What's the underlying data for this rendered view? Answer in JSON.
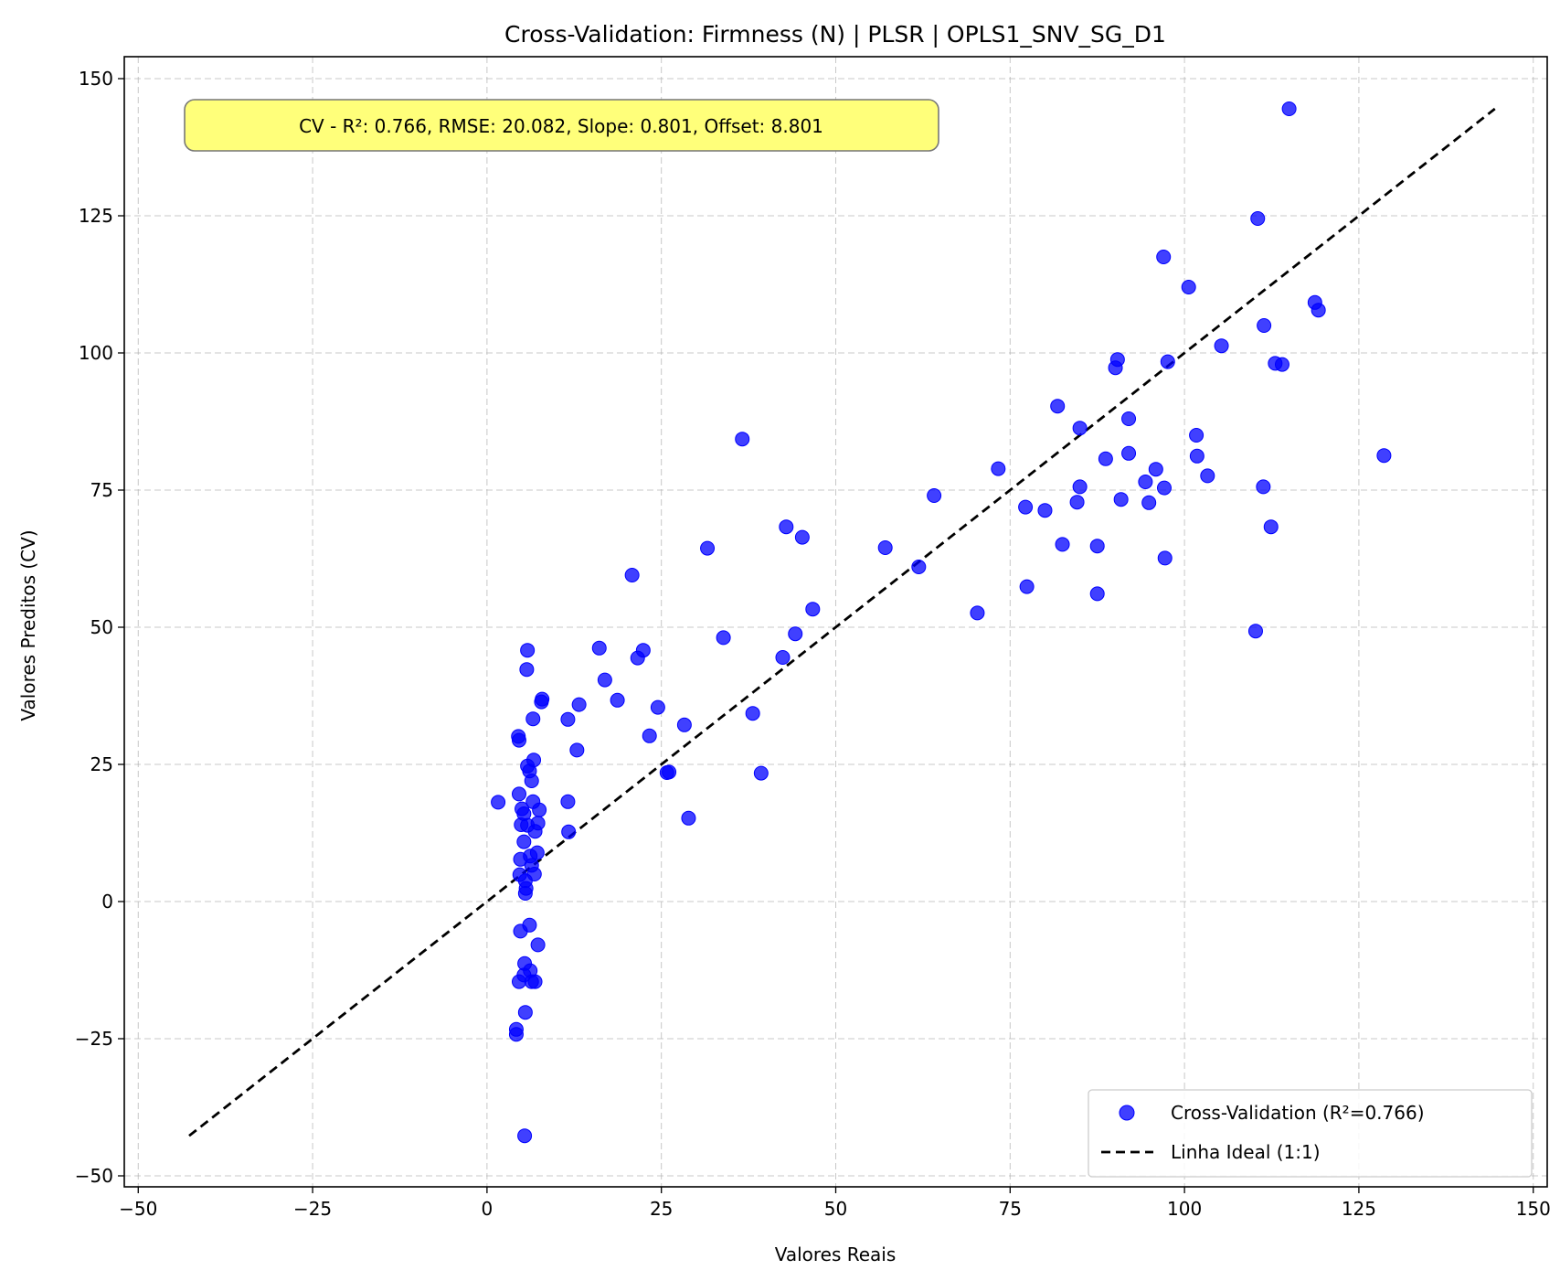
{
  "chart_data": {
    "type": "scatter",
    "title": "Cross-Validation: Firmness (N) | PLSR | OPLS1_SNV_SG_D1",
    "xlabel": "Valores Reais",
    "ylabel": "Valores Preditos (CV)",
    "xlim": [
      -52,
      152
    ],
    "ylim": [
      -52,
      154
    ],
    "xticks": [
      -50,
      -25,
      0,
      25,
      50,
      75,
      100,
      125,
      150
    ],
    "yticks": [
      -50,
      -25,
      0,
      25,
      50,
      75,
      100,
      125,
      150
    ],
    "xtick_labels": [
      "−50",
      "−25",
      "0",
      "25",
      "50",
      "75",
      "100",
      "125",
      "150"
    ],
    "ytick_labels": [
      "−50",
      "−25",
      "0",
      "25",
      "50",
      "75",
      "100",
      "125",
      "150"
    ],
    "grid": true,
    "annotation": "CV - R²: 0.766, RMSE: 20.082, Slope: 0.801, Offset: 8.801",
    "legend_position": "bottom-right",
    "series": [
      {
        "name": "Cross-Validation (R²=0.766)",
        "kind": "scatter",
        "color": "#0000ff",
        "points": [
          [
            115,
            144.5
          ],
          [
            110.5,
            124.5
          ],
          [
            97,
            117.5
          ],
          [
            100.6,
            112
          ],
          [
            118.7,
            109.2
          ],
          [
            119.2,
            107.8
          ],
          [
            111.4,
            105
          ],
          [
            105.3,
            101.3
          ],
          [
            90.4,
            98.8
          ],
          [
            90.1,
            97.3
          ],
          [
            97.6,
            98.4
          ],
          [
            113,
            98.1
          ],
          [
            114,
            97.9
          ],
          [
            81.8,
            90.3
          ],
          [
            85,
            86.3
          ],
          [
            92,
            88
          ],
          [
            101.7,
            85
          ],
          [
            101.8,
            81.2
          ],
          [
            92,
            81.7
          ],
          [
            88.7,
            80.7
          ],
          [
            95.9,
            78.8
          ],
          [
            73.3,
            78.9
          ],
          [
            103.3,
            77.6
          ],
          [
            94.4,
            76.5
          ],
          [
            97.1,
            75.4
          ],
          [
            111.3,
            75.6
          ],
          [
            85,
            75.6
          ],
          [
            128.6,
            81.3
          ],
          [
            90.9,
            73.3
          ],
          [
            94.9,
            72.7
          ],
          [
            84.6,
            72.8
          ],
          [
            77.2,
            71.9
          ],
          [
            80,
            71.3
          ],
          [
            64.1,
            74
          ],
          [
            36.6,
            84.3
          ],
          [
            112.4,
            68.3
          ],
          [
            42.9,
            68.3
          ],
          [
            45.2,
            66.4
          ],
          [
            82.5,
            65.1
          ],
          [
            87.5,
            64.8
          ],
          [
            57.1,
            64.5
          ],
          [
            31.6,
            64.4
          ],
          [
            97.2,
            62.6
          ],
          [
            61.9,
            61
          ],
          [
            20.8,
            59.5
          ],
          [
            77.4,
            57.4
          ],
          [
            87.5,
            56.1
          ],
          [
            46.7,
            53.3
          ],
          [
            70.3,
            52.6
          ],
          [
            110.2,
            49.3
          ],
          [
            44.2,
            48.8
          ],
          [
            33.9,
            48.1
          ],
          [
            16.1,
            46.2
          ],
          [
            22.4,
            45.8
          ],
          [
            21.6,
            44.4
          ],
          [
            42.4,
            44.5
          ],
          [
            5.8,
            45.8
          ],
          [
            5.7,
            42.3
          ],
          [
            16.9,
            40.4
          ],
          [
            7.9,
            36.9
          ],
          [
            7.8,
            36.4
          ],
          [
            18.7,
            36.7
          ],
          [
            13.2,
            35.9
          ],
          [
            24.5,
            35.4
          ],
          [
            38.1,
            34.3
          ],
          [
            6.6,
            33.3
          ],
          [
            11.6,
            33.2
          ],
          [
            28.3,
            32.2
          ],
          [
            4.5,
            30.1
          ],
          [
            4.6,
            29.4
          ],
          [
            23.3,
            30.2
          ],
          [
            12.9,
            27.6
          ],
          [
            6.7,
            25.8
          ],
          [
            5.8,
            24.7
          ],
          [
            6.1,
            23.8
          ],
          [
            26.1,
            23.6
          ],
          [
            25.8,
            23.5
          ],
          [
            39.3,
            23.4
          ],
          [
            6.4,
            22
          ],
          [
            4.6,
            19.6
          ],
          [
            6.6,
            18.2
          ],
          [
            1.6,
            18.1
          ],
          [
            11.6,
            18.2
          ],
          [
            5,
            16.9
          ],
          [
            7.5,
            16.7
          ],
          [
            5.3,
            16
          ],
          [
            28.9,
            15.2
          ],
          [
            4.9,
            14
          ],
          [
            5.8,
            13.9
          ],
          [
            7.3,
            14.3
          ],
          [
            6.9,
            12.8
          ],
          [
            11.7,
            12.7
          ],
          [
            5.3,
            10.9
          ],
          [
            7.2,
            8.9
          ],
          [
            6.2,
            8.3
          ],
          [
            4.8,
            7.7
          ],
          [
            6.4,
            6.6
          ],
          [
            4.7,
            4.9
          ],
          [
            6.8,
            5
          ],
          [
            5.5,
            3.8
          ],
          [
            5.6,
            2.4
          ],
          [
            5.5,
            1.5
          ],
          [
            6.1,
            -4.3
          ],
          [
            4.8,
            -5.4
          ],
          [
            7.3,
            -7.9
          ],
          [
            5.4,
            -11.3
          ],
          [
            6.2,
            -12.6
          ],
          [
            5.3,
            -13.4
          ],
          [
            4.6,
            -14.6
          ],
          [
            6.9,
            -14.6
          ],
          [
            6.4,
            -14.6
          ],
          [
            5.5,
            -20.2
          ],
          [
            4.2,
            -23.3
          ],
          [
            4.2,
            -24.2
          ],
          [
            5.4,
            -42.7
          ]
        ]
      },
      {
        "name": "Linha Ideal (1:1)",
        "kind": "line",
        "color": "#000000",
        "x": [
          -42.7,
          144.5
        ],
        "y": [
          -42.7,
          144.5
        ]
      }
    ]
  }
}
